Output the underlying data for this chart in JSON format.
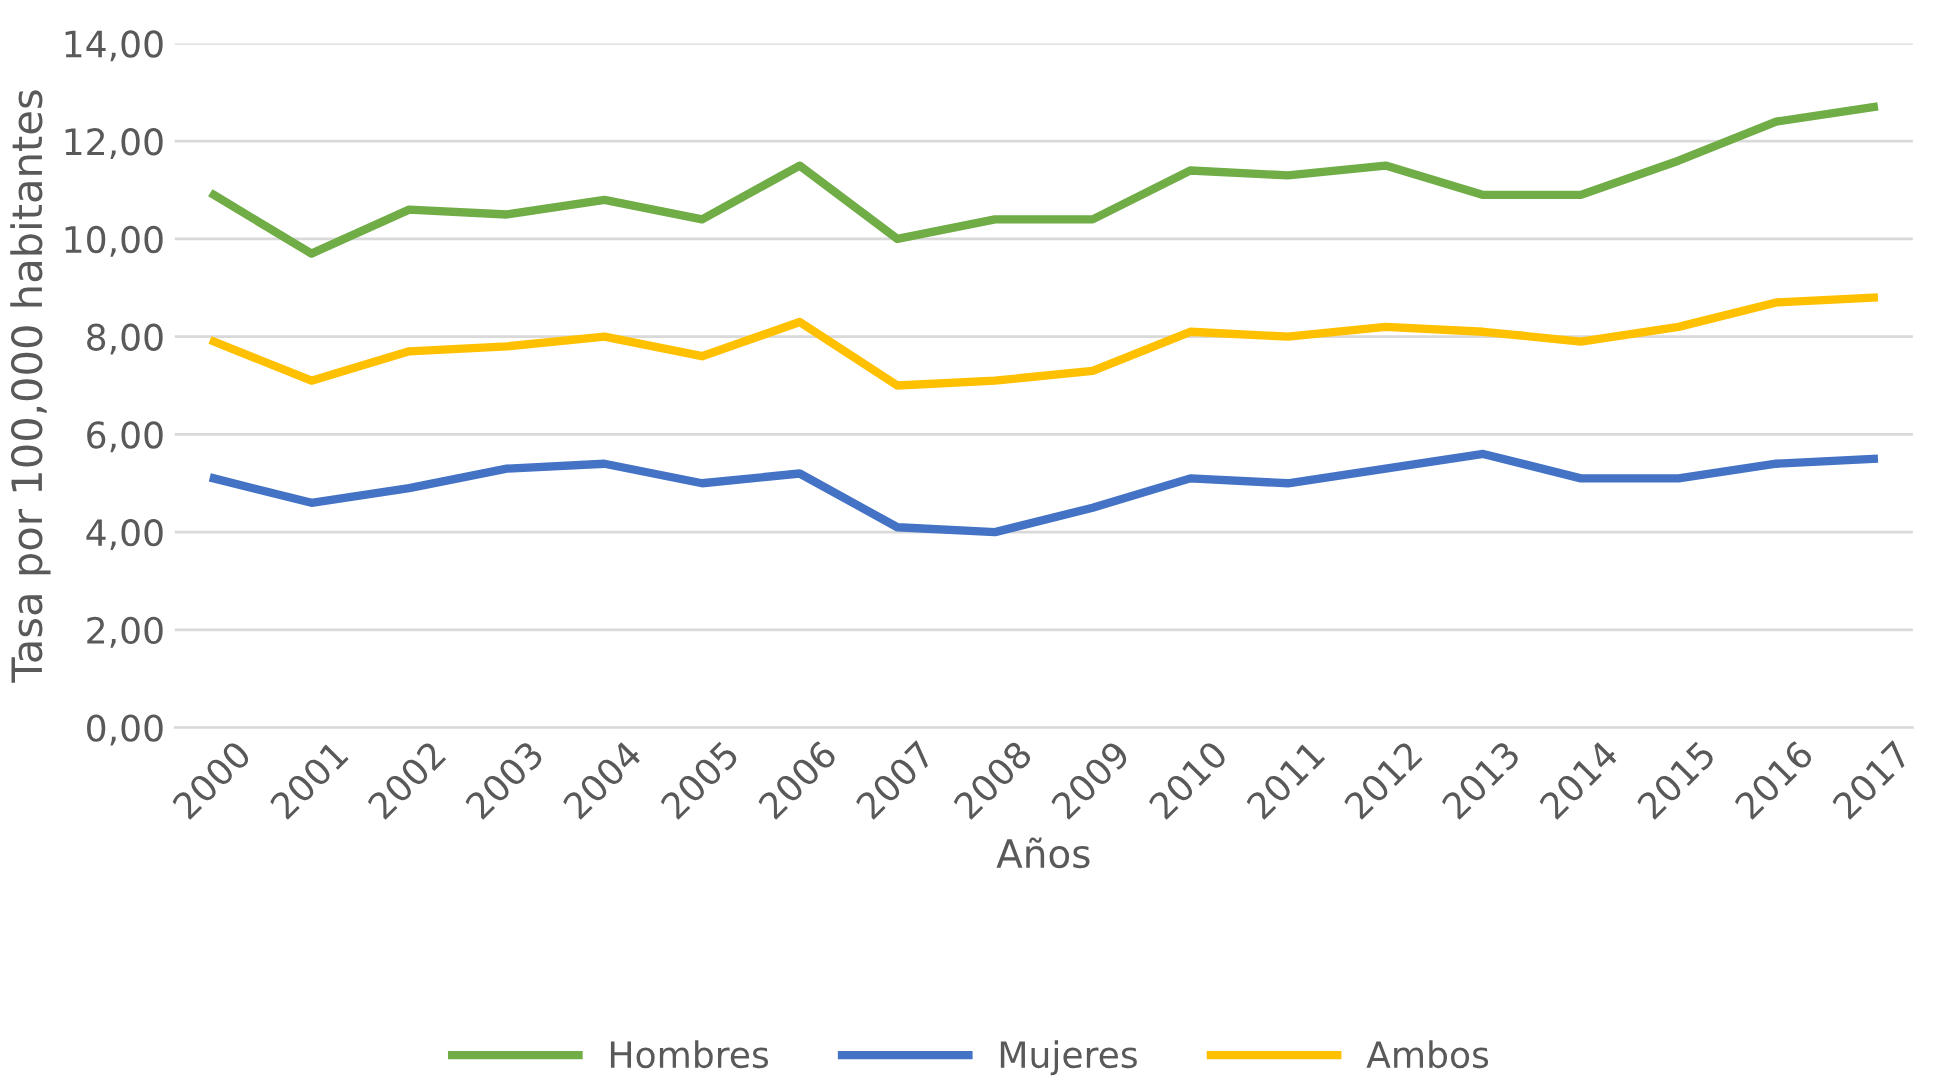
{
  "chart_data": {
    "type": "line",
    "xlabel": "Años",
    "ylabel": "Tasa por 100,000 habitantes",
    "categories": [
      "2000",
      "2001",
      "2002",
      "2003",
      "2004",
      "2005",
      "2006",
      "2007",
      "2008",
      "2009",
      "2010",
      "2011",
      "2012",
      "2013",
      "2014",
      "2015",
      "2016",
      "2017"
    ],
    "series": [
      {
        "name": "Hombres",
        "color": "#70ad47",
        "values": [
          10.9,
          9.7,
          10.6,
          10.5,
          10.8,
          10.4,
          11.5,
          10.0,
          10.4,
          10.4,
          11.4,
          11.3,
          11.5,
          10.9,
          10.9,
          11.6,
          12.4,
          12.7
        ]
      },
      {
        "name": "Mujeres",
        "color": "#4472c4",
        "values": [
          5.1,
          4.6,
          4.9,
          5.3,
          5.4,
          5.0,
          5.2,
          4.1,
          4.0,
          4.5,
          5.1,
          5.0,
          5.3,
          5.6,
          5.1,
          5.1,
          5.4,
          5.5
        ]
      },
      {
        "name": "Ambos",
        "color": "#ffc000",
        "values": [
          7.9,
          7.1,
          7.7,
          7.8,
          8.0,
          7.6,
          8.3,
          7.0,
          7.1,
          7.3,
          8.1,
          8.0,
          8.2,
          8.1,
          7.9,
          8.2,
          8.7,
          8.8
        ]
      }
    ],
    "ylim": [
      0,
      14
    ],
    "yticks": [
      {
        "value": 0,
        "label": "0,00"
      },
      {
        "value": 2,
        "label": "2,00"
      },
      {
        "value": 4,
        "label": "4,00"
      },
      {
        "value": 6,
        "label": "6,00"
      },
      {
        "value": 8,
        "label": "8,00"
      },
      {
        "value": 10,
        "label": "10,00"
      },
      {
        "value": 12,
        "label": "12,00"
      },
      {
        "value": 14,
        "label": "14,00"
      }
    ],
    "grid": "y",
    "legend": "bottom",
    "marker": "none",
    "line_style": "solid"
  }
}
